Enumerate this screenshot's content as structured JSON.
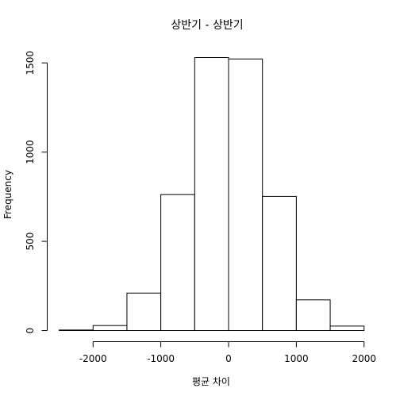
{
  "chart_data": {
    "type": "bar",
    "title": "상반기 - 상반기",
    "xlabel": "평균 차이",
    "ylabel": "Frequency",
    "bins": [
      {
        "from": -2500,
        "to": -2000,
        "count": 3
      },
      {
        "from": -2000,
        "to": -1500,
        "count": 28
      },
      {
        "from": -1500,
        "to": -1000,
        "count": 210
      },
      {
        "from": -1000,
        "to": -500,
        "count": 762
      },
      {
        "from": -500,
        "to": 0,
        "count": 1530
      },
      {
        "from": 0,
        "to": 500,
        "count": 1522
      },
      {
        "from": 500,
        "to": 1000,
        "count": 752
      },
      {
        "from": 1000,
        "to": 1500,
        "count": 172
      },
      {
        "from": 1500,
        "to": 2000,
        "count": 25
      }
    ],
    "xticks": [
      -2000,
      -1000,
      0,
      1000,
      2000
    ],
    "yticks": [
      0,
      500,
      1000,
      1500
    ],
    "xlim": [
      -2500,
      2000
    ],
    "ylim": [
      0,
      1530
    ],
    "grid": false,
    "legend": "none",
    "colors": {
      "bar_fill": "#ffffff",
      "bar_stroke": "#000000"
    }
  }
}
